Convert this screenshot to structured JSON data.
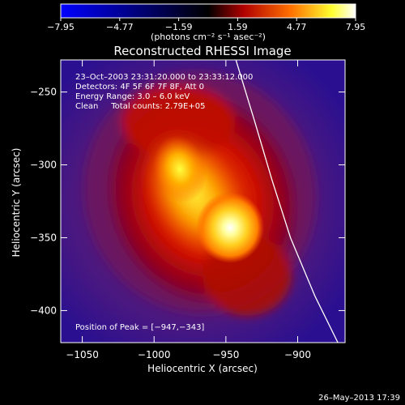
{
  "chart_data": {
    "type": "heatmap",
    "title": "Reconstructed RHESSI Image",
    "xlabel": "Heliocentric X (arcsec)",
    "ylabel": "Heliocentric Y (arcsec)",
    "xlim": [
      -1065,
      -867
    ],
    "ylim": [
      -422,
      -228
    ],
    "x_ticks": [
      -1050,
      -1000,
      -950,
      -900
    ],
    "x_tick_labels": [
      "−1050",
      "−1000",
      "−950",
      "−900"
    ],
    "y_ticks": [
      -250,
      -300,
      -350,
      -400
    ],
    "y_tick_labels": [
      "−250",
      "−300",
      "−350",
      "−400"
    ],
    "colorbar": {
      "range": [
        -7.95,
        7.95
      ],
      "ticks": [
        -7.95,
        -4.77,
        -1.59,
        1.59,
        4.77,
        7.95
      ],
      "tick_labels": [
        "−7.95",
        "−4.77",
        "−1.59",
        "1.59",
        "4.77",
        "7.95"
      ],
      "unit_label": "(photons cm⁻² s⁻¹ asec⁻²)",
      "colormap": [
        "#0000ff",
        "#000000",
        "#c00000",
        "#ff8000",
        "#ffff40",
        "#ffffff"
      ]
    },
    "annotations": [
      "23–Oct–2003 23:31:20.000 to 23:33:12.000",
      "Detectors: 4F 5F 6F 7F 8F, Att 0",
      "Energy Range: 3.0 – 6.0 keV",
      "Clean     Total counts: 2.79E+05"
    ],
    "peak_label": "Position of Peak = [−947,−343]",
    "peak": [
      -947,
      -343
    ],
    "secondary_source": [
      -982,
      -303
    ],
    "limb_curve": [
      [
        -943,
        -228
      ],
      [
        -930,
        -270
      ],
      [
        -918,
        -310
      ],
      [
        -905,
        -350
      ],
      [
        -888,
        -390
      ],
      [
        -872,
        -422
      ]
    ],
    "grid": false
  },
  "footer": {
    "timestamp": "26–May–2013 17:39"
  }
}
